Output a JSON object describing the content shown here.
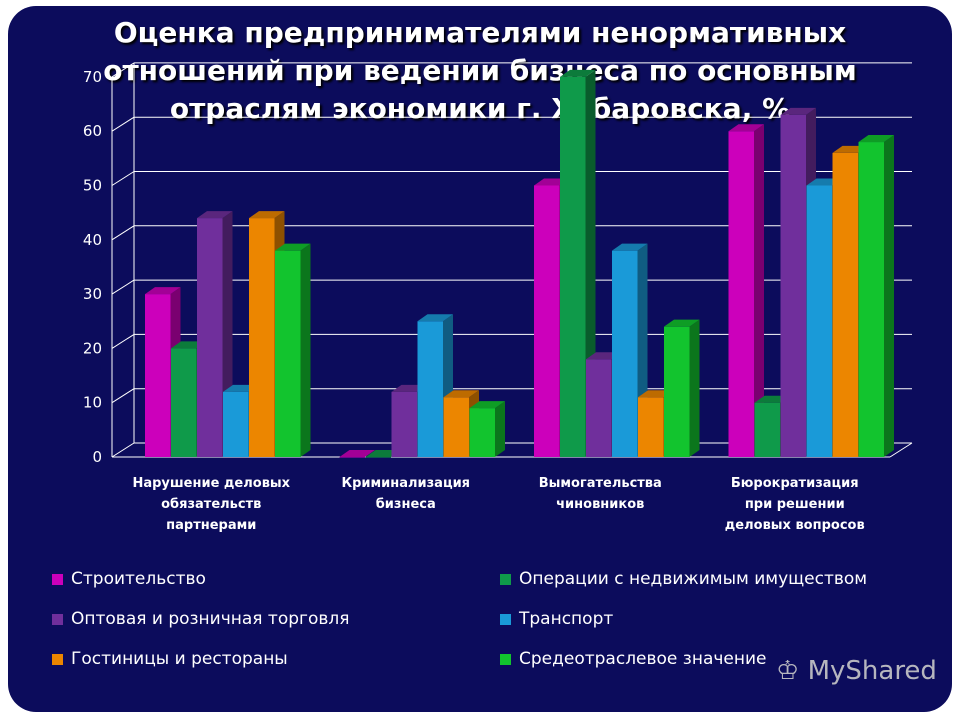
{
  "chart_data": {
    "type": "bar",
    "title": "Оценка предпринимателями ненормативных отношений при ведении бизнеса по основным отраслям экономики г. Хабаровска, %",
    "categories": [
      [
        "Нарушение деловых",
        "обязательств",
        "партнерами"
      ],
      [
        "Криминализация",
        "бизнеса"
      ],
      [
        "Вымогательства",
        "чиновников"
      ],
      [
        "Бюрократизация",
        "при решении",
        "деловых вопросов"
      ]
    ],
    "series": [
      {
        "name": "Строительство",
        "color": "#cc00bb",
        "values": [
          30,
          0,
          50,
          60
        ]
      },
      {
        "name": "Операции с недвижимым имуществом",
        "color": "#0f9a4a",
        "values": [
          20,
          0,
          70,
          10
        ]
      },
      {
        "name": "Оптовая и розничная торговля",
        "color": "#702f9c",
        "values": [
          44,
          12,
          18,
          63
        ]
      },
      {
        "name": "Транспорт",
        "color": "#1a9ad8",
        "values": [
          12,
          25,
          38,
          50
        ]
      },
      {
        "name": "Гостиницы и рестораны",
        "color": "#ec8600",
        "values": [
          44,
          11,
          11,
          56
        ]
      },
      {
        "name": "Средеотраслевое значение",
        "color": "#12c42e",
        "values": [
          38,
          9,
          24,
          58
        ]
      }
    ],
    "yticks": [
      "0",
      "10",
      "20",
      "30",
      "40",
      "50",
      "60",
      "70"
    ],
    "ylim": [
      0,
      70
    ],
    "grid": true,
    "legend_position": "bottom"
  },
  "watermark": "MyShared"
}
